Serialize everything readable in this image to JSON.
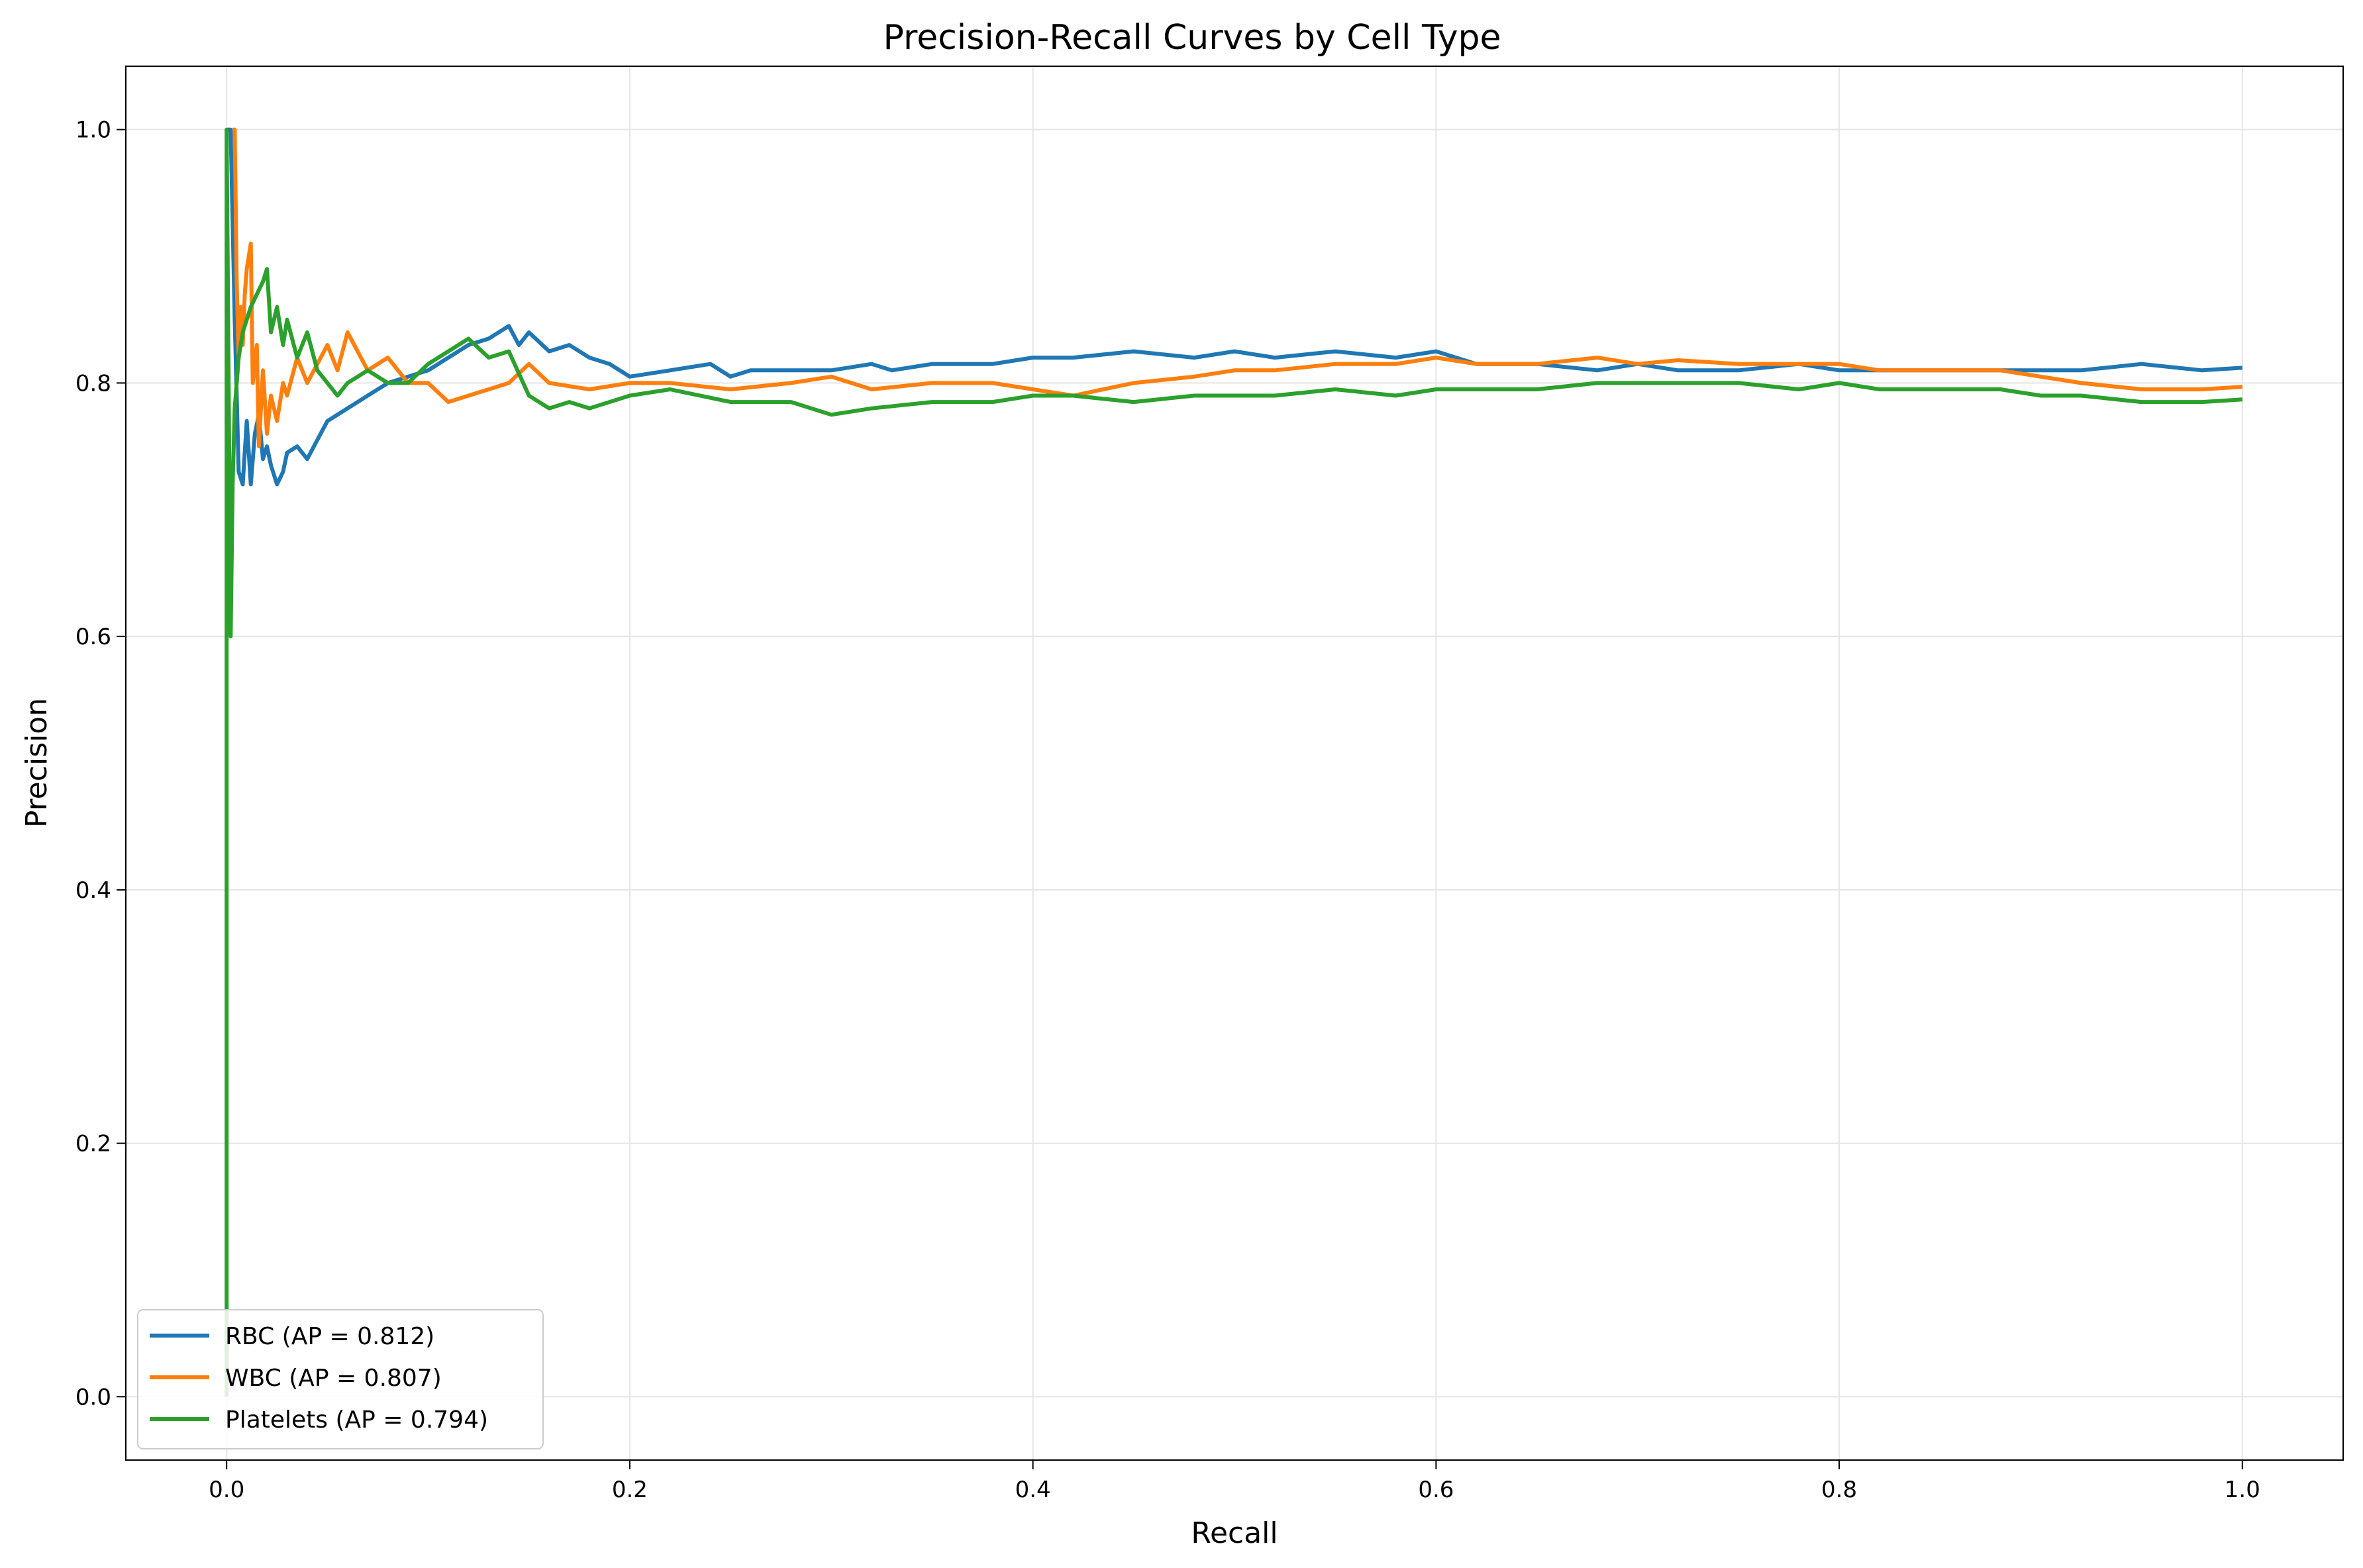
{
  "chart_data": {
    "type": "line",
    "title": "Precision-Recall Curves by Cell Type",
    "xlabel": "Recall",
    "ylabel": "Precision",
    "xlim": [
      -0.05,
      1.05
    ],
    "ylim": [
      -0.05,
      1.05
    ],
    "xticks": [
      "0.0",
      "0.2",
      "0.4",
      "0.6",
      "0.8",
      "1.0"
    ],
    "yticks": [
      "0.0",
      "0.2",
      "0.4",
      "0.6",
      "0.8",
      "1.0"
    ],
    "grid": true,
    "legend_position": "lower-left",
    "series": [
      {
        "name": "RBC (AP = 0.812)",
        "color": "#1f77b4",
        "x": [
          0.0,
          0.002,
          0.004,
          0.006,
          0.008,
          0.01,
          0.012,
          0.014,
          0.016,
          0.018,
          0.02,
          0.022,
          0.025,
          0.028,
          0.03,
          0.035,
          0.04,
          0.045,
          0.05,
          0.055,
          0.06,
          0.07,
          0.08,
          0.09,
          0.1,
          0.11,
          0.12,
          0.13,
          0.14,
          0.145,
          0.15,
          0.16,
          0.17,
          0.18,
          0.19,
          0.2,
          0.22,
          0.24,
          0.25,
          0.26,
          0.28,
          0.3,
          0.32,
          0.33,
          0.35,
          0.38,
          0.4,
          0.42,
          0.45,
          0.48,
          0.5,
          0.52,
          0.55,
          0.58,
          0.6,
          0.62,
          0.65,
          0.68,
          0.7,
          0.72,
          0.75,
          0.78,
          0.8,
          0.82,
          0.85,
          0.88,
          0.9,
          0.92,
          0.95,
          0.98,
          1.0
        ],
        "y": [
          1.0,
          1.0,
          0.85,
          0.73,
          0.72,
          0.77,
          0.72,
          0.76,
          0.775,
          0.74,
          0.75,
          0.735,
          0.72,
          0.73,
          0.745,
          0.75,
          0.74,
          0.755,
          0.77,
          0.775,
          0.78,
          0.79,
          0.8,
          0.805,
          0.81,
          0.82,
          0.83,
          0.835,
          0.845,
          0.83,
          0.84,
          0.825,
          0.83,
          0.82,
          0.815,
          0.805,
          0.81,
          0.815,
          0.805,
          0.81,
          0.81,
          0.81,
          0.815,
          0.81,
          0.815,
          0.815,
          0.82,
          0.82,
          0.825,
          0.82,
          0.825,
          0.82,
          0.825,
          0.82,
          0.825,
          0.815,
          0.815,
          0.81,
          0.815,
          0.81,
          0.81,
          0.815,
          0.81,
          0.81,
          0.81,
          0.81,
          0.81,
          0.81,
          0.815,
          0.81,
          0.812
        ]
      },
      {
        "name": "WBC (AP = 0.807)",
        "color": "#ff7f0e",
        "x": [
          0.003,
          0.004,
          0.005,
          0.006,
          0.007,
          0.008,
          0.009,
          0.01,
          0.012,
          0.013,
          0.015,
          0.016,
          0.018,
          0.02,
          0.022,
          0.025,
          0.028,
          0.03,
          0.035,
          0.04,
          0.05,
          0.055,
          0.06,
          0.07,
          0.08,
          0.09,
          0.1,
          0.11,
          0.12,
          0.13,
          0.14,
          0.15,
          0.16,
          0.18,
          0.2,
          0.22,
          0.25,
          0.28,
          0.3,
          0.32,
          0.35,
          0.38,
          0.4,
          0.42,
          0.45,
          0.48,
          0.5,
          0.52,
          0.55,
          0.58,
          0.6,
          0.62,
          0.65,
          0.68,
          0.7,
          0.72,
          0.75,
          0.78,
          0.8,
          0.82,
          0.85,
          0.88,
          0.9,
          0.92,
          0.95,
          0.98,
          1.0
        ],
        "y": [
          1.0,
          1.0,
          0.88,
          0.82,
          0.86,
          0.83,
          0.87,
          0.89,
          0.91,
          0.8,
          0.83,
          0.75,
          0.81,
          0.76,
          0.79,
          0.77,
          0.8,
          0.79,
          0.82,
          0.8,
          0.83,
          0.81,
          0.84,
          0.81,
          0.82,
          0.8,
          0.8,
          0.785,
          0.79,
          0.795,
          0.8,
          0.815,
          0.8,
          0.795,
          0.8,
          0.8,
          0.795,
          0.8,
          0.805,
          0.795,
          0.8,
          0.8,
          0.795,
          0.79,
          0.8,
          0.805,
          0.81,
          0.81,
          0.815,
          0.815,
          0.82,
          0.815,
          0.815,
          0.82,
          0.815,
          0.818,
          0.815,
          0.815,
          0.815,
          0.81,
          0.81,
          0.81,
          0.805,
          0.8,
          0.795,
          0.795,
          0.797
        ]
      },
      {
        "name": "Platelets (AP = 0.794)",
        "color": "#2ca02c",
        "x": [
          0.0,
          0.0,
          0.001,
          0.002,
          0.003,
          0.004,
          0.006,
          0.008,
          0.01,
          0.012,
          0.015,
          0.018,
          0.02,
          0.022,
          0.025,
          0.028,
          0.03,
          0.035,
          0.04,
          0.045,
          0.05,
          0.055,
          0.06,
          0.07,
          0.08,
          0.09,
          0.1,
          0.11,
          0.12,
          0.13,
          0.14,
          0.15,
          0.16,
          0.17,
          0.18,
          0.2,
          0.22,
          0.25,
          0.28,
          0.3,
          0.32,
          0.35,
          0.38,
          0.4,
          0.42,
          0.45,
          0.48,
          0.5,
          0.52,
          0.55,
          0.58,
          0.6,
          0.62,
          0.65,
          0.68,
          0.7,
          0.72,
          0.75,
          0.78,
          0.8,
          0.82,
          0.85,
          0.88,
          0.9,
          0.92,
          0.95,
          0.98,
          1.0
        ],
        "y": [
          0.0,
          1.0,
          0.8,
          0.6,
          0.72,
          0.78,
          0.82,
          0.84,
          0.85,
          0.86,
          0.87,
          0.88,
          0.89,
          0.84,
          0.86,
          0.83,
          0.85,
          0.82,
          0.84,
          0.81,
          0.8,
          0.79,
          0.8,
          0.81,
          0.8,
          0.8,
          0.815,
          0.825,
          0.835,
          0.82,
          0.825,
          0.79,
          0.78,
          0.785,
          0.78,
          0.79,
          0.795,
          0.785,
          0.785,
          0.775,
          0.78,
          0.785,
          0.785,
          0.79,
          0.79,
          0.785,
          0.79,
          0.79,
          0.79,
          0.795,
          0.79,
          0.795,
          0.795,
          0.795,
          0.8,
          0.8,
          0.8,
          0.8,
          0.795,
          0.8,
          0.795,
          0.795,
          0.795,
          0.79,
          0.79,
          0.785,
          0.785,
          0.787
        ]
      }
    ]
  }
}
